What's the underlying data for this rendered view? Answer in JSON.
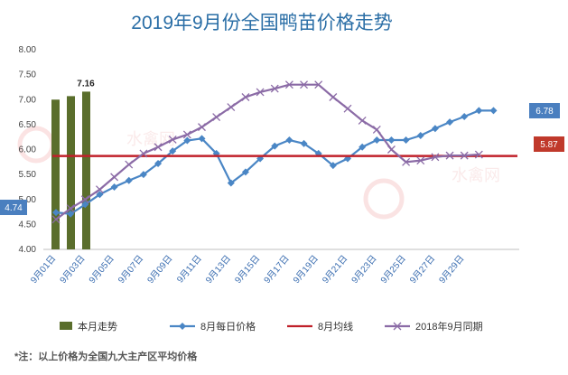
{
  "chart_data": {
    "type": "bar+line",
    "title": "2019年9月份全国鸭苗价格走势",
    "x_labels": [
      "9月01日",
      "9月03日",
      "9月05日",
      "9月07日",
      "9月09日",
      "9月11日",
      "9月13日",
      "9月15日",
      "9月17日",
      "9月19日",
      "9月21日",
      "9月23日",
      "9月25日",
      "9月27日",
      "9月29日"
    ],
    "yticks": [
      "4.00",
      "4.50",
      "5.00",
      "5.50",
      "6.00",
      "6.50",
      "7.00",
      "7.50",
      "8.00"
    ],
    "ylim": [
      4.0,
      8.0
    ],
    "grid": false,
    "legend_position": "bottom",
    "series": [
      {
        "name": "本月走势",
        "kind": "bar",
        "color": "#5a6e2c",
        "x": [
          1,
          2,
          3
        ],
        "values": [
          7.0,
          7.07,
          7.16
        ]
      },
      {
        "name": "8月每日价格",
        "kind": "line",
        "color": "#4a86c5",
        "marker": "diamond",
        "x": [
          1,
          2,
          3,
          4,
          5,
          6,
          7,
          8,
          9,
          10,
          11,
          12,
          13,
          14,
          15,
          16,
          17,
          18,
          19,
          20,
          21,
          22,
          23,
          24,
          25,
          26,
          27,
          28,
          29,
          30,
          31
        ],
        "values": [
          4.74,
          4.71,
          4.9,
          5.1,
          5.25,
          5.38,
          5.5,
          5.72,
          5.97,
          6.18,
          6.22,
          5.92,
          5.33,
          5.55,
          5.82,
          6.07,
          6.19,
          6.12,
          5.92,
          5.68,
          5.82,
          6.05,
          6.19,
          6.19,
          6.19,
          6.28,
          6.42,
          6.55,
          6.66,
          6.78,
          6.78
        ]
      },
      {
        "name": "8月均线",
        "kind": "line",
        "color": "#c0202a",
        "x": [
          1,
          31
        ],
        "values": [
          5.87,
          5.87
        ]
      },
      {
        "name": "2018年9月同期",
        "kind": "line",
        "color": "#8b6ba6",
        "marker": "x",
        "x": [
          1,
          2,
          3,
          4,
          5,
          6,
          7,
          8,
          9,
          10,
          11,
          12,
          13,
          14,
          15,
          16,
          17,
          18,
          19,
          20,
          21,
          22,
          23,
          24,
          25,
          26,
          27,
          28,
          29,
          30
        ],
        "values": [
          4.6,
          4.82,
          5.0,
          5.2,
          5.45,
          5.7,
          5.92,
          6.05,
          6.2,
          6.3,
          6.45,
          6.65,
          6.85,
          7.05,
          7.15,
          7.22,
          7.3,
          7.3,
          7.3,
          7.05,
          6.82,
          6.58,
          6.4,
          6.0,
          5.75,
          5.78,
          5.85,
          5.88,
          5.88,
          5.9
        ]
      }
    ],
    "annotations": {
      "bar_max_label": "7.16",
      "start_value": "4.74",
      "end_value": "6.78",
      "avg_value": "5.87"
    },
    "watermark": "水禽网",
    "note": "*注：以上价格为全国九大主产区平均价格"
  }
}
